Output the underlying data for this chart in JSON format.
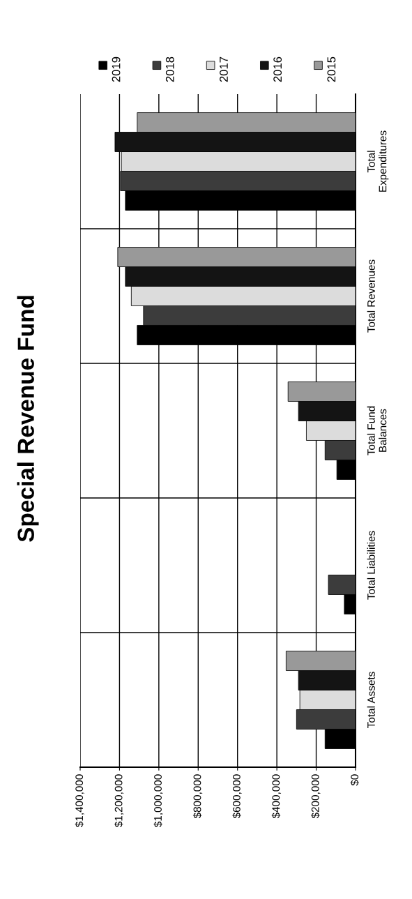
{
  "chart_data": {
    "type": "bar",
    "title": "Special Revenue Fund",
    "orientation": "horizontal",
    "categories": [
      "Total\nExpenditures",
      "Total Revenues",
      "Total Fund\nBalances",
      "Total Liabilities",
      "Total Assets"
    ],
    "series": [
      {
        "name": "2019",
        "color": "#000000",
        "values": [
          1170000,
          1110000,
          95000,
          57000,
          155000
        ]
      },
      {
        "name": "2018",
        "color": "#3c3c3c",
        "values": [
          1195000,
          1078000,
          155000,
          138000,
          300000
        ]
      },
      {
        "name": "2017",
        "color": "#dcdcdc",
        "values": [
          1190000,
          1140000,
          250000,
          null,
          283000
        ]
      },
      {
        "name": "2016",
        "color": "#141414",
        "values": [
          1223000,
          1170000,
          290000,
          null,
          290000
        ]
      },
      {
        "name": "2015",
        "color": "#999999",
        "values": [
          1110000,
          1209000,
          343000,
          null,
          353000
        ]
      }
    ],
    "xlim": [
      1400000,
      0
    ],
    "xticks": [
      {
        "value": 0,
        "label": "$0"
      },
      {
        "value": 200000,
        "label": "$200,000"
      },
      {
        "value": 400000,
        "label": "$400,000"
      },
      {
        "value": 600000,
        "label": "$600,000"
      },
      {
        "value": 800000,
        "label": "$800,000"
      },
      {
        "value": 1000000,
        "label": "$1,000,000"
      },
      {
        "value": 1200000,
        "label": "$1,200,000"
      },
      {
        "value": 1400000,
        "label": "$1,400,000"
      }
    ],
    "grid": true,
    "legend": "top"
  }
}
